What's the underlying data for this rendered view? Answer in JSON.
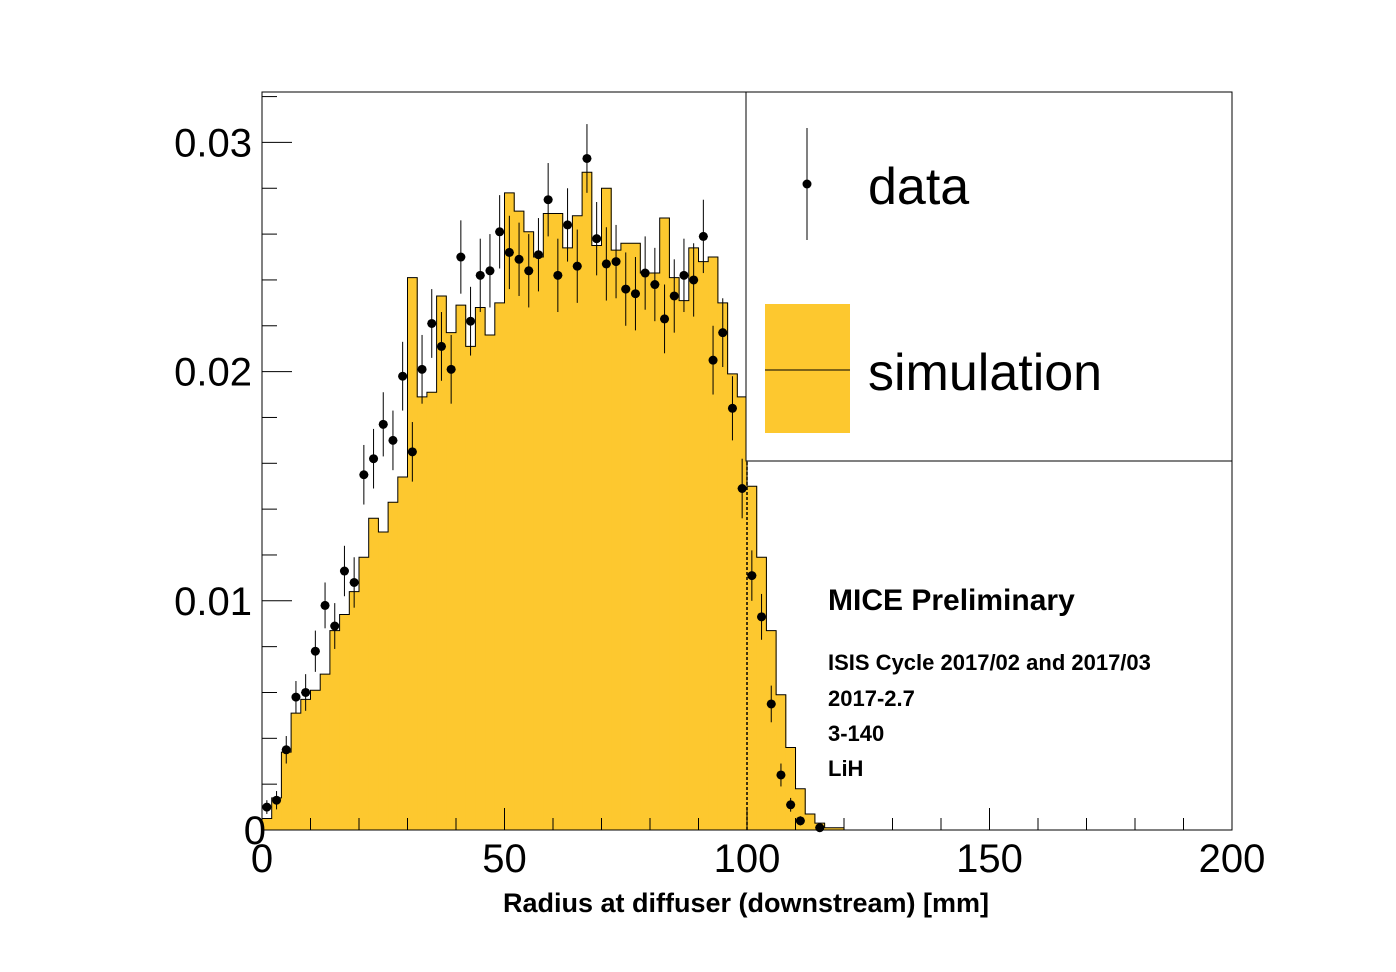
{
  "chart_data": {
    "type": "bar",
    "title": "",
    "xlabel": "Radius at diffuser (downstream) [mm]",
    "ylabel": "",
    "xlim": [
      0,
      200
    ],
    "ylim": [
      0,
      0.0322
    ],
    "bin_width": 2,
    "x_tick_labels": [
      "0",
      "50",
      "100",
      "150",
      "200"
    ],
    "y_tick_labels": [
      "0",
      "0.01",
      "0.02",
      "0.03"
    ],
    "cut_line_x": 100,
    "grid": false,
    "legend_position": "top-right",
    "series": [
      {
        "name": "simulation",
        "style": "filled-histogram",
        "color": "#fdc82f",
        "bin_starts": [
          0,
          2,
          4,
          6,
          8,
          10,
          12,
          14,
          16,
          18,
          20,
          22,
          24,
          26,
          28,
          30,
          32,
          34,
          36,
          38,
          40,
          42,
          44,
          46,
          48,
          50,
          52,
          54,
          56,
          58,
          60,
          62,
          64,
          66,
          68,
          70,
          72,
          74,
          76,
          78,
          80,
          82,
          84,
          86,
          88,
          90,
          92,
          94,
          96,
          98,
          100,
          102,
          104,
          106,
          108,
          110,
          112,
          114,
          116,
          118
        ],
        "values": [
          0.0005,
          0.0014,
          0.0034,
          0.0051,
          0.0057,
          0.0061,
          0.0068,
          0.0087,
          0.0094,
          0.0104,
          0.0119,
          0.0136,
          0.013,
          0.0143,
          0.0154,
          0.0241,
          0.0189,
          0.0191,
          0.0233,
          0.0217,
          0.0229,
          0.0211,
          0.0228,
          0.0216,
          0.023,
          0.0278,
          0.027,
          0.0261,
          0.025,
          0.0269,
          0.0269,
          0.0254,
          0.0268,
          0.0287,
          0.0255,
          0.028,
          0.0253,
          0.0256,
          0.0256,
          0.0243,
          0.0243,
          0.0267,
          0.0241,
          0.0231,
          0.0254,
          0.0248,
          0.025,
          0.023,
          0.0199,
          0.0189,
          0.015,
          0.0119,
          0.0087,
          0.0059,
          0.0036,
          0.0018,
          0.0007,
          0.0003,
          0.0001,
          0.0001
        ]
      },
      {
        "name": "data",
        "style": "points-with-error-bars",
        "color": "#000000",
        "x": [
          1,
          3,
          5,
          7,
          9,
          11,
          13,
          15,
          17,
          19,
          21,
          23,
          25,
          27,
          29,
          31,
          33,
          35,
          37,
          39,
          41,
          43,
          45,
          47,
          49,
          51,
          53,
          55,
          57,
          59,
          61,
          63,
          65,
          67,
          69,
          71,
          73,
          75,
          77,
          79,
          81,
          83,
          85,
          87,
          89,
          91,
          93,
          95,
          97,
          99,
          101,
          103,
          105,
          107,
          109,
          111,
          115
        ],
        "y": [
          0.001,
          0.0013,
          0.0035,
          0.0058,
          0.006,
          0.0078,
          0.0098,
          0.0089,
          0.0113,
          0.0108,
          0.0155,
          0.0162,
          0.0177,
          0.017,
          0.0198,
          0.0165,
          0.0201,
          0.0221,
          0.0211,
          0.0201,
          0.025,
          0.0222,
          0.0242,
          0.0244,
          0.0261,
          0.0252,
          0.0249,
          0.0244,
          0.0251,
          0.0275,
          0.0242,
          0.0264,
          0.0246,
          0.0293,
          0.0258,
          0.0247,
          0.0248,
          0.0236,
          0.0234,
          0.0243,
          0.0238,
          0.0223,
          0.0233,
          0.0242,
          0.024,
          0.0259,
          0.0205,
          0.0217,
          0.0184,
          0.0149,
          0.0111,
          0.0093,
          0.0055,
          0.0024,
          0.0011,
          0.0004,
          0.0001
        ],
        "yerr": [
          0.0003,
          0.0004,
          0.0006,
          0.0007,
          0.0008,
          0.0009,
          0.001,
          0.001,
          0.0011,
          0.0011,
          0.0013,
          0.0013,
          0.0014,
          0.0013,
          0.0015,
          0.0013,
          0.0015,
          0.0015,
          0.0015,
          0.0015,
          0.0016,
          0.0015,
          0.0016,
          0.0016,
          0.0016,
          0.0016,
          0.0016,
          0.0016,
          0.0016,
          0.0016,
          0.0016,
          0.0016,
          0.0016,
          0.0015,
          0.0016,
          0.0016,
          0.0016,
          0.0016,
          0.0016,
          0.0016,
          0.0016,
          0.0015,
          0.0016,
          0.0016,
          0.0016,
          0.0016,
          0.0015,
          0.0015,
          0.0014,
          0.0013,
          0.0011,
          0.001,
          0.0008,
          0.0005,
          0.0003,
          0.0002,
          0.0001
        ]
      }
    ]
  },
  "legend": {
    "data_label": "data",
    "simulation_label": "simulation"
  },
  "annotations": {
    "main": "MICE Preliminary",
    "lines": [
      "ISIS Cycle 2017/02 and 2017/03",
      "2017-2.7",
      "3-140",
      "LiH"
    ]
  }
}
